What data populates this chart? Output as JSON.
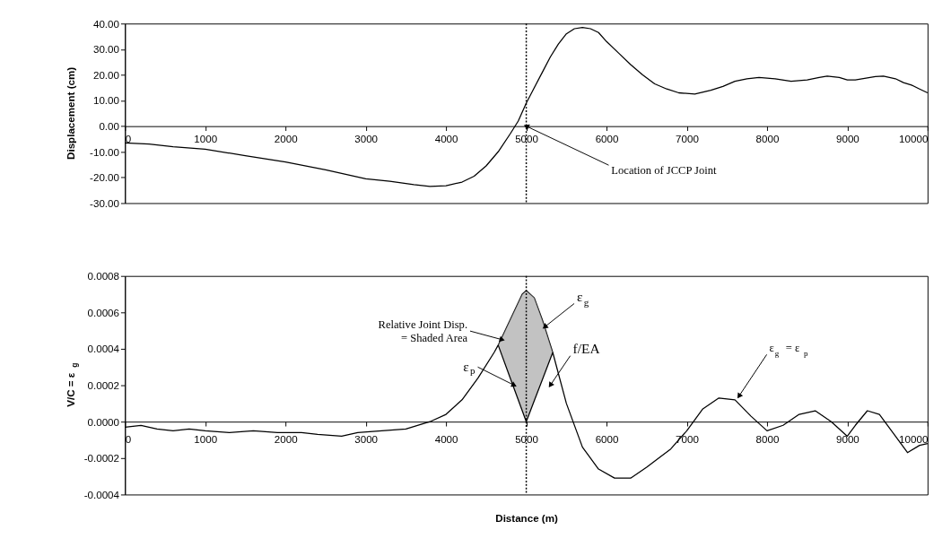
{
  "chart_data": [
    {
      "type": "line",
      "ylabel": "Displacement (cm)",
      "series": [
        {
          "color": "#000000",
          "x": [
            0,
            300,
            600,
            1000,
            1500,
            2000,
            2500,
            3000,
            3300,
            3600,
            3800,
            4000,
            4200,
            4350,
            4500,
            4650,
            4800,
            4900,
            5000,
            5100,
            5200,
            5300,
            5400,
            5500,
            5600,
            5700,
            5800,
            5900,
            6000,
            6150,
            6300,
            6450,
            6600,
            6750,
            6900,
            7100,
            7300,
            7450,
            7600,
            7750,
            7900,
            8100,
            8300,
            8500,
            8650,
            8750,
            8900,
            9000,
            9100,
            9250,
            9350,
            9450,
            9600,
            9700,
            9800,
            9900,
            10000
          ],
          "values": [
            -6.5,
            -7,
            -8,
            -9,
            -11.5,
            -14,
            -17,
            -20.5,
            -21.5,
            -22.8,
            -23.5,
            -23.2,
            -21.8,
            -19.5,
            -15.5,
            -10,
            -3,
            2,
            9,
            15,
            21,
            27,
            32,
            36,
            38,
            38.5,
            38,
            36.5,
            33,
            28.5,
            24,
            20,
            16.5,
            14.5,
            13,
            12.5,
            14,
            15.5,
            17.5,
            18.5,
            19,
            18.5,
            17.5,
            18,
            19,
            19.5,
            19,
            18,
            18,
            18.8,
            19.3,
            19.5,
            18.5,
            17,
            16,
            14.5,
            13
          ]
        }
      ],
      "xlim": [
        0,
        10000
      ],
      "xticks": [
        0,
        1000,
        2000,
        3000,
        4000,
        5000,
        6000,
        7000,
        8000,
        9000,
        10000
      ],
      "ylim": [
        -30,
        40
      ],
      "yticks": [
        {
          "value": -30,
          "label": "-30.00"
        },
        {
          "value": -20,
          "label": "-20.00"
        },
        {
          "value": -10,
          "label": "-10.00"
        },
        {
          "value": 0,
          "label": "0.00"
        },
        {
          "value": 10,
          "label": "10.00"
        },
        {
          "value": 20,
          "label": "20.00"
        },
        {
          "value": 30,
          "label": "30.00"
        },
        {
          "value": 40,
          "label": "40.00"
        }
      ],
      "ref_lines": [
        {
          "axis": "x",
          "value": 5000,
          "line_style": "dotted"
        }
      ],
      "annotations": [
        {
          "text": "Location of JCCP Joint",
          "x": 5000,
          "y": 0
        }
      ],
      "grid": false
    },
    {
      "type": "line",
      "xlabel": "Distance (m)",
      "ylabel": "V/C = ε$_{g}$",
      "series": [
        {
          "color": "#000000",
          "x": [
            0,
            200,
            400,
            600,
            800,
            1000,
            1300,
            1600,
            1900,
            2200,
            2400,
            2700,
            2900,
            3200,
            3500,
            3800,
            4000,
            4200,
            4400,
            4600,
            4650,
            4800,
            4950,
            5000,
            5100,
            5200,
            5330,
            5500,
            5700,
            5900,
            6100,
            6300,
            6500,
            6800,
            7000,
            7200,
            7400,
            7600,
            7800,
            8000,
            8200,
            8400,
            8600,
            8800,
            9000,
            9100,
            9250,
            9400,
            9600,
            9750,
            9900,
            10000
          ],
          "values": [
            -3e-05,
            -2e-05,
            -4e-05,
            -5e-05,
            -4e-05,
            -5e-05,
            -6e-05,
            -5e-05,
            -6e-05,
            -6e-05,
            -7e-05,
            -8e-05,
            -6e-05,
            -5e-05,
            -4e-05,
            0.0,
            4e-05,
            0.00012,
            0.00024,
            0.00038,
            0.00042,
            0.00056,
            0.0007,
            0.00072,
            0.00068,
            0.00056,
            0.00038,
            0.0001,
            -0.00014,
            -0.00026,
            -0.00031,
            -0.00031,
            -0.00025,
            -0.00015,
            -5e-05,
            7e-05,
            0.00013,
            0.00012,
            3e-05,
            -5e-05,
            -2e-05,
            4e-05,
            6e-05,
            0.0,
            -8e-05,
            -2e-05,
            6e-05,
            4e-05,
            -8e-05,
            -0.00017,
            -0.00013,
            -0.00012
          ]
        },
        {
          "color": "#000000",
          "x": [
            4650,
            4800,
            4950,
            5000,
            5100,
            5200,
            5330
          ],
          "values": [
            0.00042,
            0.00024,
            6e-05,
            0.0,
            0.000115,
            0.00023,
            0.00038
          ],
          "lower": [
            0.00042,
            0.00024,
            6e-05,
            0.0,
            0.000115,
            0.00023,
            0.00038
          ],
          "upper": [
            0.00042,
            0.00056,
            0.0007,
            0.00072,
            0.00068,
            0.00056,
            0.00038
          ]
        }
      ],
      "xlim": [
        0,
        10000
      ],
      "xticks": [
        0,
        1000,
        2000,
        3000,
        4000,
        5000,
        6000,
        7000,
        8000,
        9000,
        10000
      ],
      "ylim": [
        -0.0004,
        0.0008
      ],
      "yticks": [
        {
          "value": -0.0004,
          "label": "-0.0004"
        },
        {
          "value": -0.0002,
          "label": "-0.0002"
        },
        {
          "value": 0,
          "label": "0.0000"
        },
        {
          "value": 0.0002,
          "label": "0.0002"
        },
        {
          "value": 0.0004,
          "label": "0.0004"
        },
        {
          "value": 0.0006,
          "label": "0.0006"
        },
        {
          "value": 0.0008,
          "label": "0.0008"
        }
      ],
      "ref_lines": [
        {
          "axis": "x",
          "value": 5000,
          "line_style": "dotted"
        }
      ],
      "annotations": [
        {
          "text": "Relative Joint Disp.\n= Shaded Area",
          "x": 4700,
          "y": 0.00045
        },
        {
          "text": "ε$_{g}$",
          "x": 5230,
          "y": 0.00052
        },
        {
          "text": "ε$_{p}$",
          "x": 4850,
          "y": 0.0002
        },
        {
          "text": "f/EA",
          "x": 5300,
          "y": 0.0002
        },
        {
          "text": "ε$_{g}$ = ε$_{p}$",
          "x": 7650,
          "y": 0.00014
        }
      ],
      "grid": false
    }
  ]
}
